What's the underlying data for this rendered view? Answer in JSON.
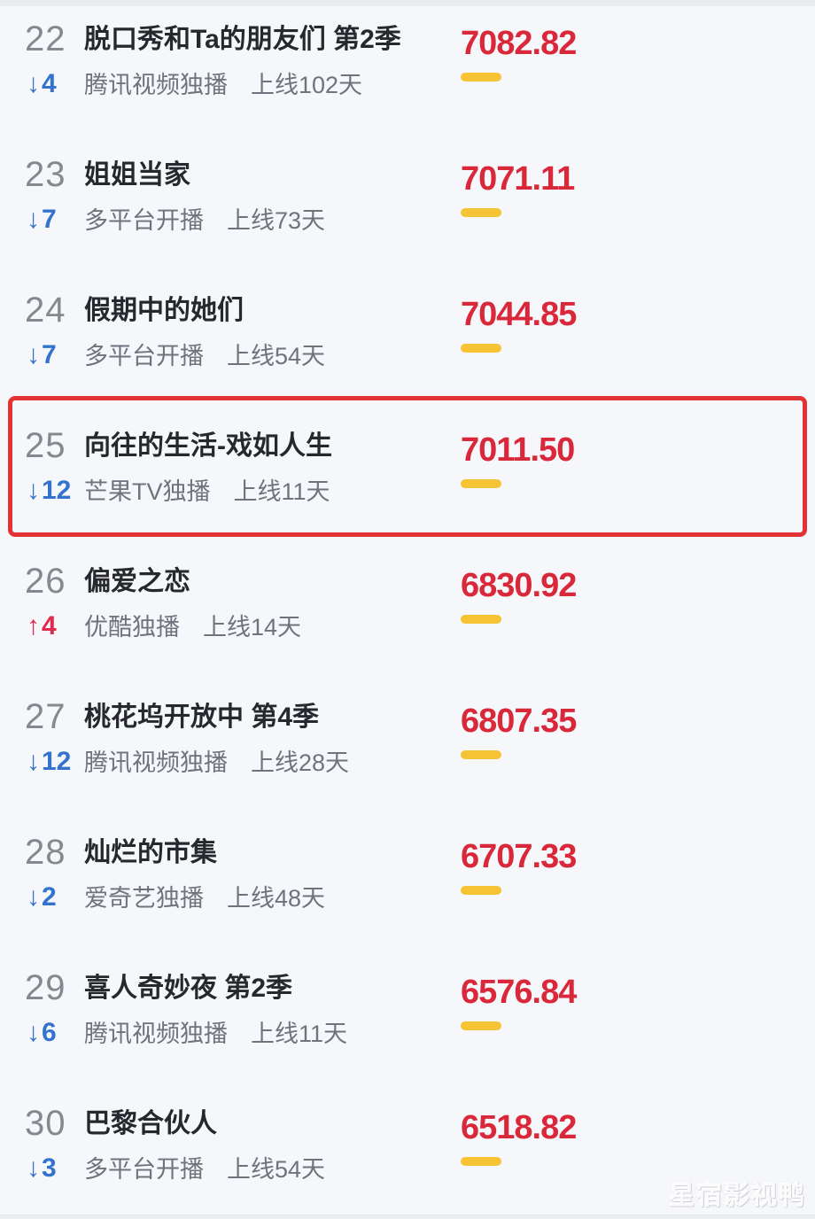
{
  "list": {
    "rows": [
      {
        "rank": "22",
        "trend": "down",
        "trend_arrow": "↓",
        "trend_value": "4",
        "title": "脱口秀和Ta的朋友们 第2季",
        "platform": "腾讯视频独播",
        "days": "上线102天",
        "score": "7082.82",
        "highlighted": false
      },
      {
        "rank": "23",
        "trend": "down",
        "trend_arrow": "↓",
        "trend_value": "7",
        "title": "姐姐当家",
        "platform": "多平台开播",
        "days": "上线73天",
        "score": "7071.11",
        "highlighted": false
      },
      {
        "rank": "24",
        "trend": "down",
        "trend_arrow": "↓",
        "trend_value": "7",
        "title": "假期中的她们",
        "platform": "多平台开播",
        "days": "上线54天",
        "score": "7044.85",
        "highlighted": false
      },
      {
        "rank": "25",
        "trend": "down",
        "trend_arrow": "↓",
        "trend_value": "12",
        "title": "向往的生活-戏如人生",
        "platform": "芒果TV独播",
        "days": "上线11天",
        "score": "7011.50",
        "highlighted": true
      },
      {
        "rank": "26",
        "trend": "up",
        "trend_arrow": "↑",
        "trend_value": "4",
        "title": "偏爱之恋",
        "platform": "优酷独播",
        "days": "上线14天",
        "score": "6830.92",
        "highlighted": false
      },
      {
        "rank": "27",
        "trend": "down",
        "trend_arrow": "↓",
        "trend_value": "12",
        "title": "桃花坞开放中 第4季",
        "platform": "腾讯视频独播",
        "days": "上线28天",
        "score": "6807.35",
        "highlighted": false
      },
      {
        "rank": "28",
        "trend": "down",
        "trend_arrow": "↓",
        "trend_value": "2",
        "title": "灿烂的市集",
        "platform": "爱奇艺独播",
        "days": "上线48天",
        "score": "6707.33",
        "highlighted": false
      },
      {
        "rank": "29",
        "trend": "down",
        "trend_arrow": "↓",
        "trend_value": "6",
        "title": "喜人奇妙夜 第2季",
        "platform": "腾讯视频独播",
        "days": "上线11天",
        "score": "6576.84",
        "highlighted": false
      },
      {
        "rank": "30",
        "trend": "down",
        "trend_arrow": "↓",
        "trend_value": "3",
        "title": "巴黎合伙人",
        "platform": "多平台开播",
        "days": "上线54天",
        "score": "6518.82",
        "highlighted": false
      }
    ]
  },
  "watermark": {
    "text": "星宿影视鸭"
  },
  "colors": {
    "background": "#f6f7fa",
    "score": "#d9283a",
    "trend_up": "#e02a4e",
    "trend_down": "#3372cd",
    "highlight_border": "#e23334",
    "score_underline": "#f5c334",
    "rank": "#85888f",
    "title": "#26282d",
    "subtext": "#6e737c"
  }
}
